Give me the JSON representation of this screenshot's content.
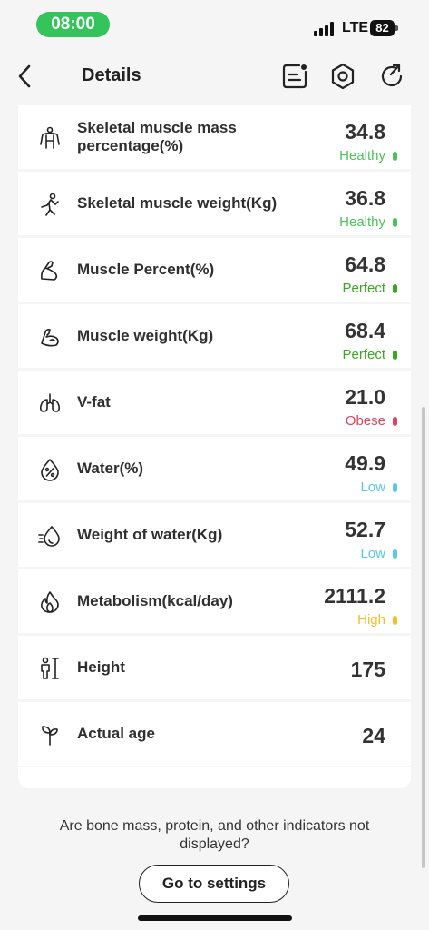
{
  "status_bar": {
    "time": "08:00",
    "network": "LTE",
    "battery": "82"
  },
  "nav": {
    "title": "Details"
  },
  "metrics": [
    {
      "label": "Skeletal muscle mass percentage(%)",
      "value": "34.8",
      "status": "Healthy",
      "status_color": "#4cc25a",
      "icon": "upper-body-icon"
    },
    {
      "label": "Skeletal muscle weight(Kg)",
      "value": "36.8",
      "status": "Healthy",
      "status_color": "#4cc25a",
      "icon": "body-pose-icon"
    },
    {
      "label": "Muscle Percent(%)",
      "value": "64.8",
      "status": "Perfect",
      "status_color": "#3aa620",
      "icon": "flexed-arm-icon"
    },
    {
      "label": "Muscle weight(Kg)",
      "value": "68.4",
      "status": "Perfect",
      "status_color": "#3aa620",
      "icon": "arm-muscle-icon"
    },
    {
      "label": "V-fat",
      "value": "21.0",
      "status": "Obese",
      "status_color": "#e0435c",
      "icon": "lungs-icon"
    },
    {
      "label": "Water(%)",
      "value": "49.9",
      "status": "Low",
      "status_color": "#5bc6e6",
      "icon": "water-percent-icon"
    },
    {
      "label": "Weight of water(Kg)",
      "value": "52.7",
      "status": "Low",
      "status_color": "#5bc6e6",
      "icon": "water-drop-icon"
    },
    {
      "label": "Metabolism(kcal/day)",
      "value": "2111.2",
      "status": "High",
      "status_color": "#f5bf2a",
      "icon": "flame-icon"
    },
    {
      "label": "Height",
      "value": "175",
      "status": "",
      "status_color": "",
      "icon": "height-icon"
    },
    {
      "label": "Actual age",
      "value": "24",
      "status": "",
      "status_color": "",
      "icon": "sprout-icon"
    }
  ],
  "footer": {
    "question": "Are bone mass, protein, and other indicators not displayed?",
    "button": "Go to settings"
  }
}
